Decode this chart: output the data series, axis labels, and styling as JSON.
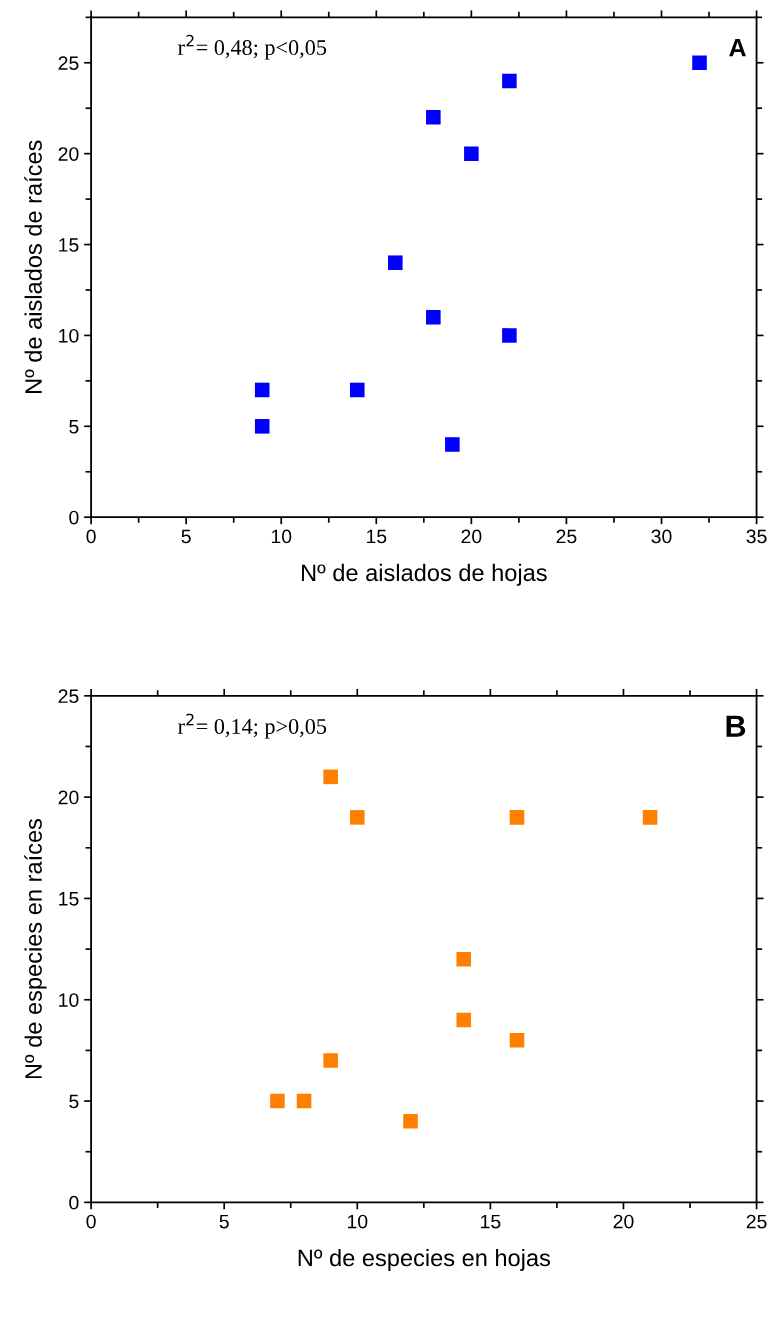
{
  "chart_data": [
    {
      "type": "scatter",
      "xlabel": "Nº de aislados de hojas",
      "ylabel": "Nº de aislados de raíces",
      "annotations": [
        "r$^{2}$= 0,48; p<0,05",
        "A"
      ],
      "marker": "square",
      "xlim": [
        0,
        35
      ],
      "ylim": [
        0,
        27.5
      ],
      "xticks": [
        0,
        5,
        10,
        15,
        20,
        25,
        30,
        35
      ],
      "yticks": [
        0,
        5,
        10,
        15,
        20,
        25
      ],
      "grid": false,
      "legend": false,
      "series": [
        {
          "color": "#0000ff",
          "x": [
            32,
            22,
            18,
            20,
            16,
            18,
            22,
            9,
            14,
            9,
            19
          ],
          "values": [
            25,
            24,
            22,
            20,
            14,
            11,
            10,
            7,
            7,
            5,
            4
          ]
        }
      ]
    },
    {
      "type": "scatter",
      "xlabel": "Nº de especies en hojas",
      "ylabel": "Nº de especies en raíces",
      "annotations": [
        "r$^{2}$= 0,14; p>0,05",
        "B"
      ],
      "marker": "square",
      "xlim": [
        0,
        25
      ],
      "ylim": [
        0,
        25
      ],
      "xticks": [
        0,
        5,
        10,
        15,
        20,
        25
      ],
      "yticks": [
        0,
        5,
        10,
        15,
        20,
        25
      ],
      "grid": false,
      "legend": false,
      "series": [
        {
          "color": "#ff8000",
          "x": [
            9,
            10,
            16,
            21,
            14,
            14,
            16,
            9,
            7,
            8,
            12
          ],
          "values": [
            21,
            19,
            19,
            19,
            12,
            9,
            8,
            7,
            5,
            5,
            4
          ]
        }
      ]
    }
  ]
}
